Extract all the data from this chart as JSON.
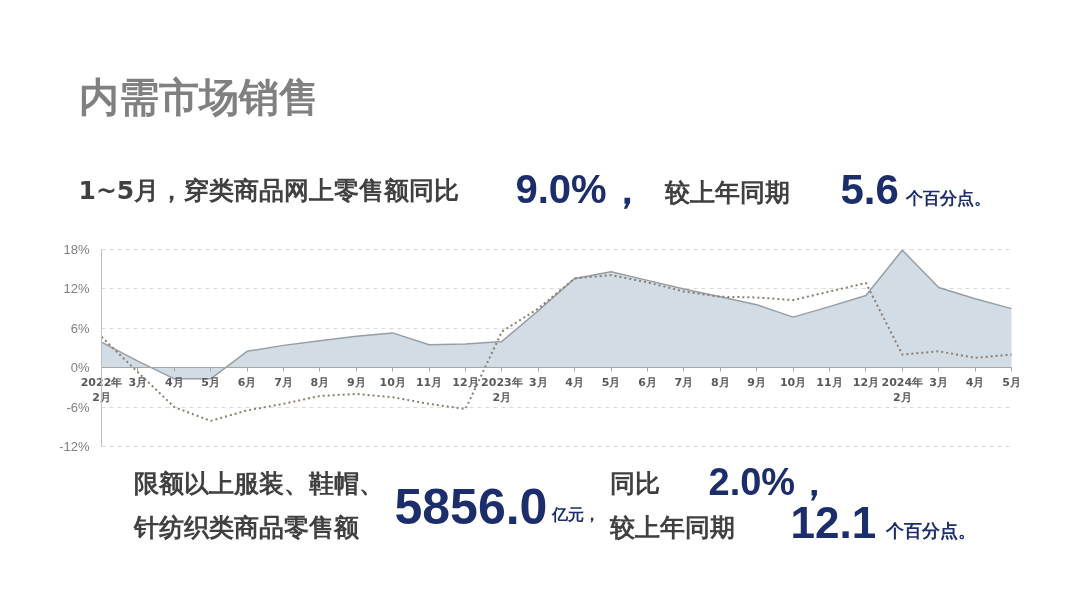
{
  "chart_data": {
    "type": "area",
    "title": "内需市场销售",
    "annotations": [
      "1~5月，穿类商品网上零售额同比",
      "9.0%，",
      "较上年同期",
      "5.6",
      "个百分点。",
      "限额以上服装、鞋帽、",
      "针纺织类商品零售额",
      "5856.0",
      "亿元，",
      "同比",
      "2.0%，",
      "较上年同期",
      "12.1",
      "个百分点。"
    ],
    "categories": [
      "2022年\n2月",
      "3月",
      "4月",
      "5月",
      "6月",
      "7月",
      "8月",
      "9月",
      "10月",
      "11月",
      "12月",
      "2023年\n2月",
      "3月",
      "4月",
      "5月",
      "6月",
      "7月",
      "8月",
      "9月",
      "10月",
      "11月",
      "12月",
      "2024年\n2月",
      "3月",
      "4月",
      "5月"
    ],
    "series": [
      {
        "color": "#d2dce5",
        "values": [
          3.9,
          1.0,
          -1.7,
          -1.7,
          2.5,
          3.4,
          4.1,
          4.8,
          5.3,
          3.5,
          3.6,
          4.0,
          8.7,
          13.6,
          14.6,
          13.3,
          12.0,
          10.8,
          9.6,
          7.7,
          9.3,
          11.0,
          17.9,
          12.2,
          10.5,
          9.0
        ]
      },
      {
        "type": "line",
        "color": "#8c7e6e",
        "line_style": "dotted",
        "values": [
          4.7,
          -0.7,
          -6.0,
          -8.1,
          -6.5,
          -5.5,
          -4.3,
          -4.0,
          -4.5,
          -5.5,
          -6.3,
          5.5,
          9.0,
          13.6,
          14.1,
          13.0,
          11.6,
          10.8,
          10.7,
          10.3,
          11.6,
          12.9,
          2.0,
          2.5,
          1.5,
          2.0
        ]
      }
    ],
    "ylim": [
      -12,
      18
    ],
    "yticks": [
      {
        "value": 18,
        "label": "18%"
      },
      {
        "value": 12,
        "label": "12%"
      },
      {
        "value": 6,
        "label": "6%"
      },
      {
        "value": 0,
        "label": "0%"
      },
      {
        "value": -6,
        "label": "-6%"
      },
      {
        "value": -12,
        "label": "-12%"
      }
    ],
    "grid": "y"
  }
}
